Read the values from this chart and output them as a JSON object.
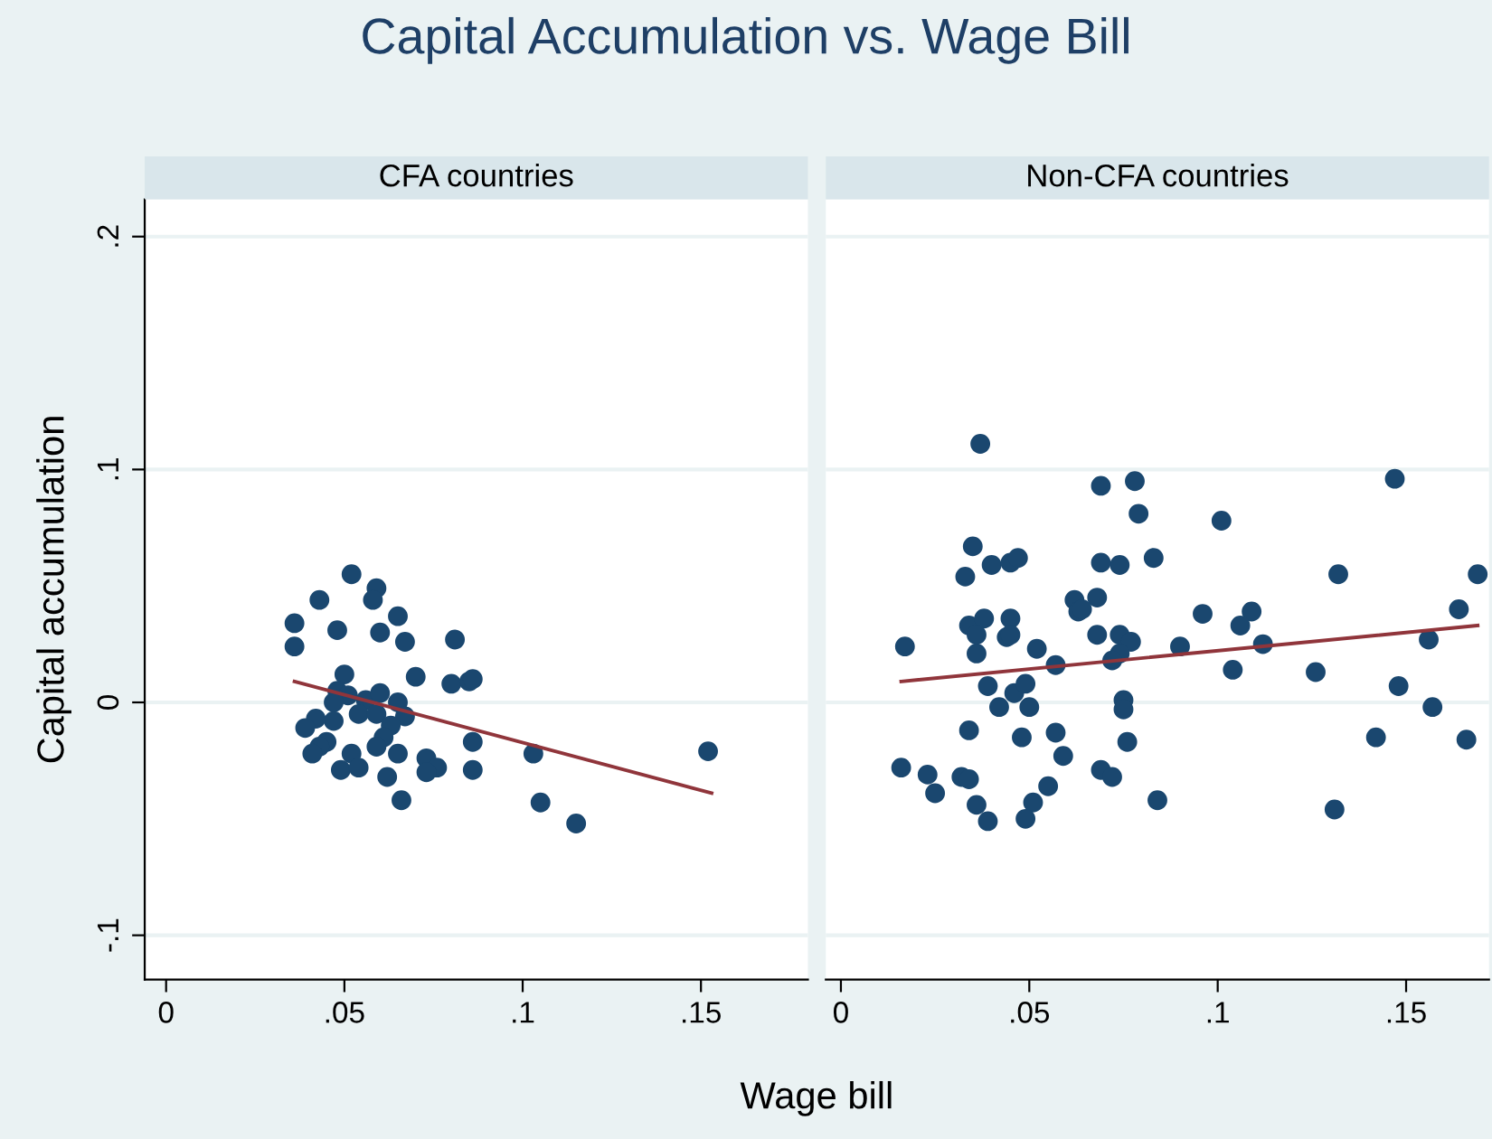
{
  "chart_data": [
    {
      "type": "scatter",
      "title": "Capital Accumulation vs. Wage Bill",
      "subtitle": "CFA countries",
      "xlabel": "Wage bill",
      "ylabel": "Capital accumulation",
      "xlim": [
        -0.006,
        0.18
      ],
      "ylim": [
        -0.119,
        0.216
      ],
      "xticks": [
        0,
        {
          "value": 0.05,
          "label": ".05"
        },
        {
          "value": 0.1,
          "label": ".1"
        },
        {
          "value": 0.15,
          "label": ".15"
        }
      ],
      "yticks": [
        {
          "value": -0.1,
          "label": "-.1"
        },
        0,
        {
          "value": 0.1,
          "label": ".1"
        },
        {
          "value": 0.2,
          "label": ".2"
        }
      ],
      "grid": "y",
      "series": [
        {
          "marker": "circle",
          "color": "#1a476f",
          "x": [
            0.052,
            0.059,
            0.058,
            0.043,
            0.036,
            0.036,
            0.048,
            0.06,
            0.065,
            0.067,
            0.081,
            0.05,
            0.07,
            0.08,
            0.085,
            0.086,
            0.048,
            0.051,
            0.047,
            0.056,
            0.06,
            0.065,
            0.054,
            0.059,
            0.067,
            0.047,
            0.042,
            0.039,
            0.063,
            0.061,
            0.045,
            0.043,
            0.041,
            0.059,
            0.052,
            0.065,
            0.086,
            0.103,
            0.073,
            0.076,
            0.073,
            0.049,
            0.054,
            0.062,
            0.086,
            0.066,
            0.105,
            0.115,
            0.152
          ],
          "values": [
            0.055,
            0.049,
            0.044,
            0.044,
            0.034,
            0.024,
            0.031,
            0.03,
            0.037,
            0.026,
            0.027,
            0.012,
            0.011,
            0.008,
            0.009,
            0.01,
            0.005,
            0.003,
            0.0,
            0.001,
            0.004,
            0.0,
            -0.005,
            -0.005,
            -0.006,
            -0.008,
            -0.007,
            -0.011,
            -0.01,
            -0.015,
            -0.017,
            -0.019,
            -0.022,
            -0.019,
            -0.022,
            -0.022,
            -0.017,
            -0.022,
            -0.024,
            -0.028,
            -0.03,
            -0.029,
            -0.028,
            -0.032,
            -0.029,
            -0.042,
            -0.043,
            -0.052,
            -0.021
          ]
        },
        {
          "type": "line",
          "color": "#90353b",
          "marker": "none",
          "x": [
            0.036,
            0.153
          ],
          "values": [
            0.009,
            -0.039
          ]
        }
      ]
    },
    {
      "type": "scatter",
      "subtitle": "Non-CFA countries",
      "xlim": [
        -0.004,
        0.172
      ],
      "ylim": [
        -0.119,
        0.216
      ],
      "xticks": [
        0,
        {
          "value": 0.05,
          "label": ".05"
        },
        {
          "value": 0.1,
          "label": ".1"
        },
        {
          "value": 0.15,
          "label": ".15"
        }
      ],
      "yticks": [
        {
          "value": -0.1,
          "label": null
        },
        {
          "value": 0,
          "label": null
        },
        {
          "value": 0.1,
          "label": null
        },
        {
          "value": 0.2,
          "label": null
        }
      ],
      "tick_labels": "x",
      "grid": "y",
      "series": [
        {
          "marker": "circle",
          "color": "#1a476f",
          "x": [
            0.037,
            0.069,
            0.078,
            0.079,
            0.035,
            0.033,
            0.04,
            0.045,
            0.047,
            0.069,
            0.074,
            0.083,
            0.062,
            0.068,
            0.063,
            0.064,
            0.034,
            0.038,
            0.045,
            0.036,
            0.044,
            0.045,
            0.068,
            0.074,
            0.077,
            0.017,
            0.036,
            0.052,
            0.057,
            0.074,
            0.072,
            0.039,
            0.046,
            0.049,
            0.042,
            0.05,
            0.075,
            0.075,
            0.034,
            0.048,
            0.057,
            0.059,
            0.076,
            0.016,
            0.023,
            0.032,
            0.034,
            0.025,
            0.069,
            0.072,
            0.055,
            0.051,
            0.036,
            0.039,
            0.049,
            0.084,
            0.101,
            0.147,
            0.132,
            0.169,
            0.096,
            0.109,
            0.106,
            0.164,
            0.09,
            0.112,
            0.156,
            0.104,
            0.126,
            0.148,
            0.157,
            0.142,
            0.166,
            0.131
          ],
          "values": [
            0.111,
            0.093,
            0.095,
            0.081,
            0.067,
            0.054,
            0.059,
            0.06,
            0.062,
            0.06,
            0.059,
            0.062,
            0.044,
            0.045,
            0.039,
            0.04,
            0.033,
            0.036,
            0.036,
            0.029,
            0.028,
            0.029,
            0.029,
            0.029,
            0.026,
            0.024,
            0.021,
            0.023,
            0.016,
            0.021,
            0.018,
            0.007,
            0.004,
            0.008,
            -0.002,
            -0.002,
            0.001,
            -0.003,
            -0.012,
            -0.015,
            -0.013,
            -0.023,
            -0.017,
            -0.028,
            -0.031,
            -0.032,
            -0.033,
            -0.039,
            -0.029,
            -0.032,
            -0.036,
            -0.043,
            -0.044,
            -0.051,
            -0.05,
            -0.042,
            0.078,
            0.096,
            0.055,
            0.055,
            0.038,
            0.039,
            0.033,
            0.04,
            0.024,
            0.025,
            0.027,
            0.014,
            0.013,
            0.007,
            -0.002,
            -0.015,
            -0.016,
            -0.046
          ]
        },
        {
          "type": "line",
          "color": "#90353b",
          "marker": "none",
          "x": [
            0.016,
            0.169
          ],
          "values": [
            0.009,
            0.033
          ]
        }
      ]
    }
  ]
}
